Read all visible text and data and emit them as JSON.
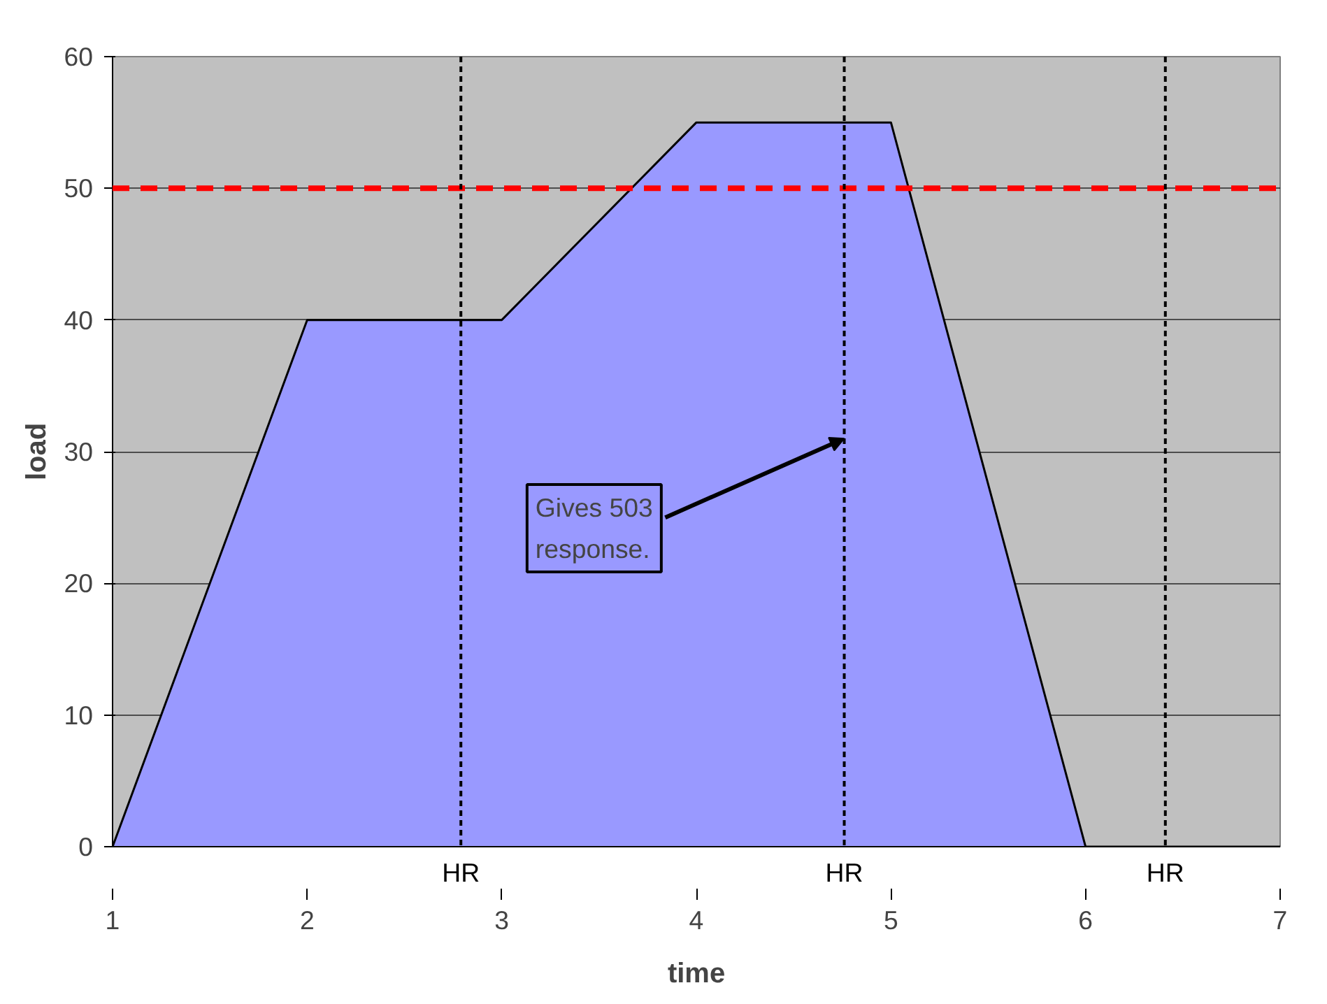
{
  "chart_data": {
    "type": "area",
    "xlabel": "time",
    "ylabel": "load",
    "x": [
      1,
      2,
      3,
      4,
      5,
      6,
      7
    ],
    "series": [
      {
        "color": "#9999ff",
        "values": [
          0,
          40,
          40,
          55,
          55,
          0,
          0
        ]
      }
    ],
    "xlim": [
      1,
      7
    ],
    "xticks": [
      1,
      2,
      3,
      4,
      5,
      6,
      7
    ],
    "ylim": [
      0,
      60
    ],
    "yticks": [
      0,
      10,
      20,
      30,
      40,
      50,
      60
    ],
    "grid": "y",
    "ref_lines": [
      {
        "axis": "y",
        "value": 50,
        "color": "#ff0000",
        "line_style": "dashed"
      },
      {
        "axis": "x",
        "value": 2.79,
        "label": "HR",
        "color": "#000000",
        "line_style": "dotted"
      },
      {
        "axis": "x",
        "value": 4.76,
        "label": "HR",
        "color": "#000000",
        "line_style": "dotted"
      },
      {
        "axis": "x",
        "value": 6.41,
        "label": "HR",
        "color": "#000000",
        "line_style": "dotted"
      }
    ],
    "annotations": [
      {
        "text": "Gives 503\nresponse.",
        "x": 4.76,
        "y": 31
      }
    ]
  }
}
